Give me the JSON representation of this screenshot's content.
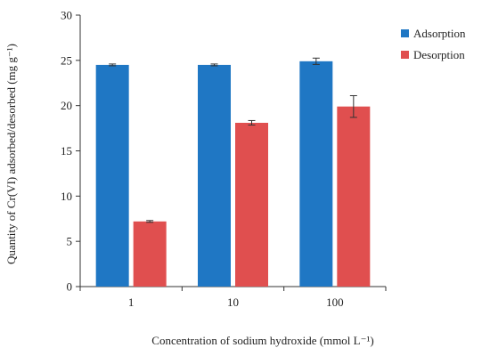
{
  "chart_data": {
    "type": "bar",
    "xlabel": "Concentration of sodium hydroxide (mmol L⁻¹)",
    "ylabel": "Quantity of Cr(VI) adsorbed/desorbed (mg g⁻¹)",
    "categories": [
      "1",
      "10",
      "100"
    ],
    "ylim": [
      0,
      30
    ],
    "yticks": [
      0,
      5,
      10,
      15,
      20,
      25,
      30
    ],
    "grid": false,
    "legend_position": "top-right",
    "series": [
      {
        "name": "Adsorption",
        "color": "#1f77c4",
        "values": [
          24.5,
          24.5,
          24.9
        ],
        "errors": [
          0.1,
          0.1,
          0.35
        ]
      },
      {
        "name": "Desorption",
        "color": "#e04f4f",
        "values": [
          7.2,
          18.1,
          19.9
        ],
        "errors": [
          0.1,
          0.25,
          1.2
        ]
      }
    ]
  }
}
